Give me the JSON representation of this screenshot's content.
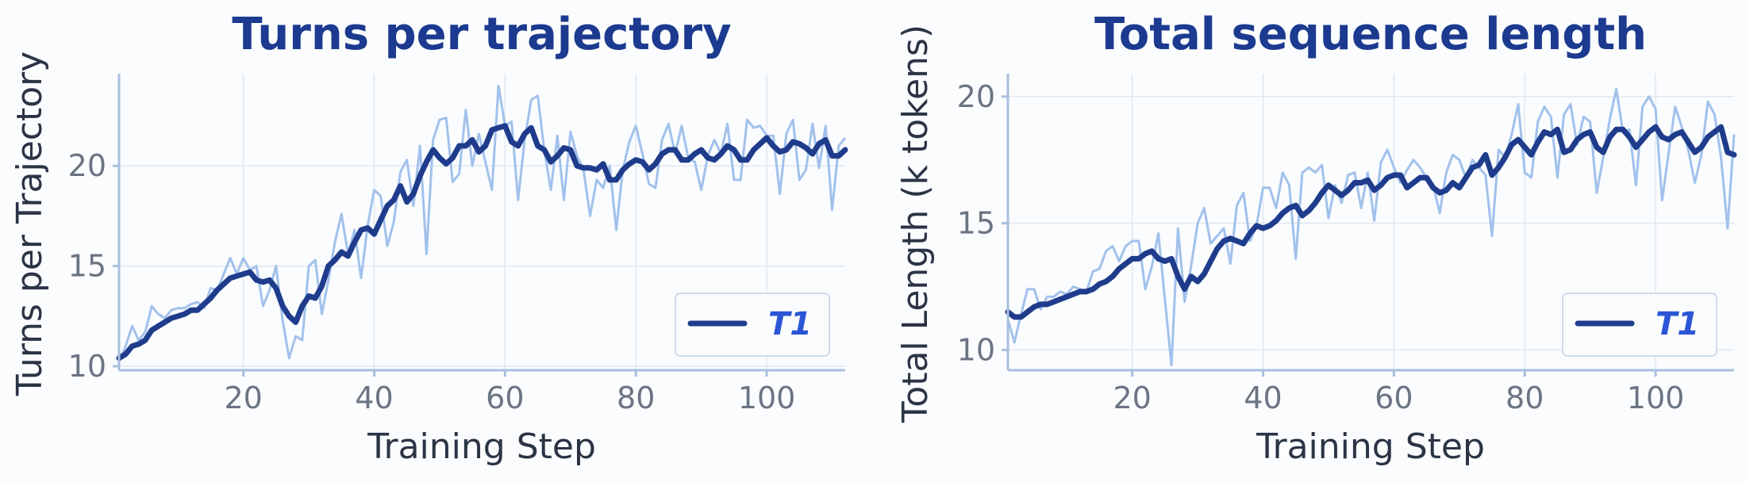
{
  "chart_data": [
    {
      "type": "line",
      "title": "Turns per trajectory",
      "xlabel": "Training Step",
      "ylabel": "Turns per Trajectory",
      "xlim": [
        1,
        112
      ],
      "ylim": [
        9.8,
        24.6
      ],
      "xticks": [
        20,
        40,
        60,
        80,
        100
      ],
      "yticks": [
        10,
        15,
        20
      ],
      "grid": true,
      "legend_position": "lower-right",
      "legend": [
        "T1"
      ],
      "x": [
        1,
        2,
        3,
        4,
        5,
        6,
        7,
        8,
        9,
        10,
        11,
        12,
        13,
        14,
        15,
        16,
        17,
        18,
        19,
        20,
        21,
        22,
        23,
        24,
        25,
        26,
        27,
        28,
        29,
        30,
        31,
        32,
        33,
        34,
        35,
        36,
        37,
        38,
        39,
        40,
        41,
        42,
        43,
        44,
        45,
        46,
        47,
        48,
        49,
        50,
        51,
        52,
        53,
        54,
        55,
        56,
        57,
        58,
        59,
        60,
        61,
        62,
        63,
        64,
        65,
        66,
        67,
        68,
        69,
        70,
        71,
        72,
        73,
        74,
        75,
        76,
        77,
        78,
        79,
        80,
        81,
        82,
        83,
        84,
        85,
        86,
        87,
        88,
        89,
        90,
        91,
        92,
        93,
        94,
        95,
        96,
        97,
        98,
        99,
        100,
        101,
        102,
        103,
        104,
        105,
        106,
        107,
        108,
        109,
        110,
        111,
        112
      ],
      "series": [
        {
          "name": "T1",
          "style": "smoothed",
          "values": [
            10.4,
            10.6,
            11.0,
            11.1,
            11.3,
            11.8,
            12.0,
            12.2,
            12.4,
            12.5,
            12.6,
            12.8,
            12.8,
            13.1,
            13.4,
            13.8,
            14.1,
            14.4,
            14.5,
            14.6,
            14.7,
            14.3,
            14.2,
            14.3,
            13.9,
            13.0,
            12.5,
            12.2,
            13.0,
            13.5,
            13.4,
            14.0,
            15.0,
            15.3,
            15.7,
            15.5,
            16.2,
            16.8,
            16.9,
            16.6,
            17.3,
            18.0,
            18.3,
            19.0,
            18.2,
            18.6,
            19.5,
            20.2,
            20.8,
            20.4,
            20.1,
            20.4,
            21.0,
            21.0,
            21.3,
            20.7,
            21.0,
            21.8,
            21.9,
            22.0,
            21.2,
            21.0,
            21.6,
            21.9,
            21.0,
            20.8,
            20.2,
            20.5,
            20.9,
            20.8,
            20.0,
            19.9,
            19.9,
            19.8,
            20.1,
            19.3,
            19.3,
            19.8,
            20.1,
            20.3,
            20.2,
            19.8,
            20.1,
            20.6,
            20.8,
            20.8,
            20.3,
            20.3,
            20.6,
            20.8,
            20.4,
            20.3,
            20.6,
            21.0,
            20.8,
            20.3,
            20.3,
            20.8,
            21.1,
            21.4,
            21.0,
            20.7,
            20.8,
            21.2,
            21.1,
            20.9,
            20.6,
            21.1,
            21.3,
            20.5,
            20.5,
            20.8
          ]
        },
        {
          "name": "T1 raw",
          "style": "raw",
          "values": [
            10.2,
            11.0,
            12.0,
            11.3,
            11.7,
            13.0,
            12.6,
            12.4,
            12.8,
            12.9,
            12.9,
            13.1,
            13.2,
            12.9,
            13.9,
            13.8,
            14.6,
            15.4,
            14.6,
            15.4,
            14.8,
            15.0,
            13.0,
            13.8,
            15.0,
            12.3,
            10.4,
            11.5,
            11.3,
            15.0,
            15.3,
            12.6,
            14.3,
            16.2,
            17.6,
            15.6,
            16.8,
            14.4,
            17.0,
            18.8,
            18.5,
            16.0,
            17.2,
            19.7,
            20.3,
            18.0,
            21.0,
            15.6,
            21.3,
            22.3,
            22.4,
            19.2,
            19.6,
            22.8,
            20.0,
            21.6,
            20.2,
            18.8,
            24.0,
            22.0,
            22.2,
            18.3,
            21.3,
            23.3,
            23.5,
            20.8,
            18.8,
            21.5,
            18.3,
            21.7,
            20.5,
            19.8,
            17.5,
            19.3,
            18.9,
            20.0,
            16.8,
            19.8,
            21.2,
            22.0,
            20.6,
            19.1,
            18.9,
            21.3,
            22.1,
            20.6,
            22.0,
            20.4,
            20.2,
            18.8,
            20.5,
            21.3,
            20.6,
            22.1,
            19.3,
            19.3,
            22.3,
            21.9,
            22.0,
            21.5,
            21.5,
            18.6,
            21.6,
            22.3,
            19.3,
            19.8,
            22.1,
            19.9,
            22.0,
            17.8,
            21.0,
            21.4
          ]
        }
      ]
    },
    {
      "type": "line",
      "title": "Total sequence length",
      "xlabel": "Training Step",
      "ylabel": "Total Length (k tokens)",
      "xlim": [
        1,
        112
      ],
      "ylim": [
        9.2,
        20.9
      ],
      "xticks": [
        20,
        40,
        60,
        80,
        100
      ],
      "yticks": [
        10,
        15,
        20
      ],
      "grid": true,
      "legend_position": "lower-right",
      "legend": [
        "T1"
      ],
      "x": [
        1,
        2,
        3,
        4,
        5,
        6,
        7,
        8,
        9,
        10,
        11,
        12,
        13,
        14,
        15,
        16,
        17,
        18,
        19,
        20,
        21,
        22,
        23,
        24,
        25,
        26,
        27,
        28,
        29,
        30,
        31,
        32,
        33,
        34,
        35,
        36,
        37,
        38,
        39,
        40,
        41,
        42,
        43,
        44,
        45,
        46,
        47,
        48,
        49,
        50,
        51,
        52,
        53,
        54,
        55,
        56,
        57,
        58,
        59,
        60,
        61,
        62,
        63,
        64,
        65,
        66,
        67,
        68,
        69,
        70,
        71,
        72,
        73,
        74,
        75,
        76,
        77,
        78,
        79,
        80,
        81,
        82,
        83,
        84,
        85,
        86,
        87,
        88,
        89,
        90,
        91,
        92,
        93,
        94,
        95,
        96,
        97,
        98,
        99,
        100,
        101,
        102,
        103,
        104,
        105,
        106,
        107,
        108,
        109,
        110,
        111,
        112
      ],
      "series": [
        {
          "name": "T1",
          "style": "smoothed",
          "values": [
            11.5,
            11.3,
            11.3,
            11.5,
            11.7,
            11.8,
            11.8,
            11.9,
            12.0,
            12.1,
            12.2,
            12.3,
            12.3,
            12.4,
            12.6,
            12.7,
            12.9,
            13.2,
            13.4,
            13.6,
            13.6,
            13.8,
            13.9,
            13.6,
            13.5,
            13.6,
            12.9,
            12.4,
            12.9,
            12.7,
            13.0,
            13.5,
            14.0,
            14.3,
            14.4,
            14.3,
            14.2,
            14.6,
            14.9,
            14.8,
            14.9,
            15.1,
            15.4,
            15.6,
            15.7,
            15.3,
            15.5,
            15.8,
            16.2,
            16.5,
            16.3,
            16.1,
            16.3,
            16.6,
            16.6,
            16.7,
            16.3,
            16.5,
            16.8,
            16.9,
            16.9,
            16.4,
            16.6,
            16.8,
            16.8,
            16.4,
            16.2,
            16.3,
            16.6,
            16.4,
            16.8,
            17.2,
            17.3,
            17.7,
            16.9,
            17.2,
            17.6,
            18.1,
            18.3,
            18.0,
            17.7,
            18.2,
            18.6,
            18.5,
            18.7,
            17.8,
            17.9,
            18.3,
            18.5,
            18.6,
            18.0,
            17.8,
            18.4,
            18.7,
            18.7,
            18.4,
            18.0,
            18.3,
            18.6,
            18.8,
            18.4,
            18.3,
            18.5,
            18.6,
            18.2,
            17.8,
            18.0,
            18.4,
            18.6,
            18.8,
            17.8,
            17.7
          ]
        },
        {
          "name": "T1 raw",
          "style": "raw",
          "values": [
            11.2,
            10.3,
            11.4,
            12.4,
            12.4,
            11.6,
            12.1,
            12.1,
            12.3,
            12.2,
            12.5,
            12.4,
            12.3,
            13.1,
            13.2,
            13.9,
            14.1,
            13.5,
            14.1,
            14.3,
            14.3,
            12.4,
            13.3,
            14.6,
            12.0,
            9.4,
            14.8,
            11.9,
            13.3,
            15.0,
            15.6,
            14.2,
            14.5,
            14.8,
            13.4,
            15.7,
            16.2,
            14.3,
            14.9,
            16.4,
            16.4,
            15.6,
            17.0,
            16.5,
            13.6,
            17.0,
            17.2,
            17.0,
            17.3,
            15.2,
            16.5,
            15.8,
            16.9,
            17.0,
            15.6,
            17.0,
            15.1,
            17.4,
            17.9,
            17.2,
            16.6,
            17.1,
            17.5,
            17.2,
            16.8,
            16.5,
            15.4,
            17.0,
            17.7,
            17.5,
            16.8,
            17.5,
            17.2,
            16.9,
            14.5,
            17.9,
            17.6,
            18.5,
            19.7,
            17.0,
            16.8,
            19.0,
            19.6,
            19.2,
            16.8,
            19.3,
            19.7,
            18.1,
            19.2,
            19.0,
            16.2,
            17.6,
            19.1,
            20.3,
            18.6,
            18.7,
            16.5,
            19.6,
            20.0,
            19.5,
            15.9,
            17.8,
            19.6,
            18.8,
            17.9,
            16.6,
            17.7,
            19.8,
            19.3,
            17.6,
            14.8,
            18.5
          ]
        }
      ]
    }
  ],
  "colors": {
    "smoothed": "#1f3c8c",
    "raw": "#a2c1ec",
    "title": "#1c3a8f",
    "legend_text": "#2a56d6"
  }
}
